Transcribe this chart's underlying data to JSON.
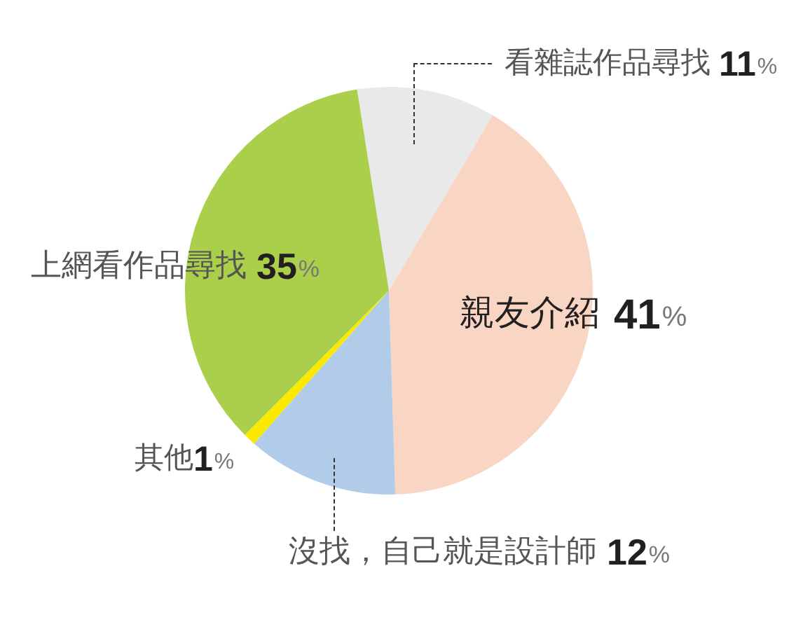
{
  "chart_data": {
    "type": "pie",
    "categories": [
      "看雜誌作品尋找",
      "親友介紹",
      "沒找，自己就是設計師",
      "其他",
      "上網看作品尋找"
    ],
    "values": [
      11,
      41,
      12,
      1,
      35
    ],
    "value_labels": [
      "11%",
      "41%",
      "12%",
      "1%",
      "35%"
    ],
    "colors": [
      "#e8e9e8",
      "#f9d6c4",
      "#b1cce8",
      "#fbe800",
      "#aacf4a"
    ],
    "legend": false
  }
}
